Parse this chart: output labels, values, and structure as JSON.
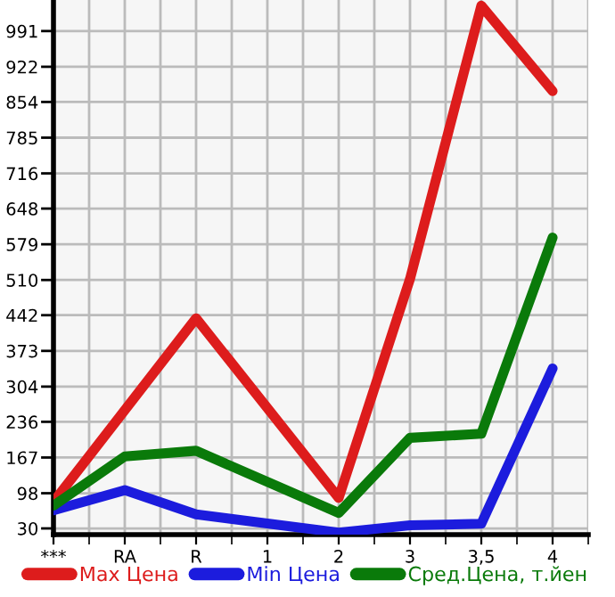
{
  "chart_data": {
    "type": "line",
    "categories": [
      "***",
      "RA",
      "R",
      "1",
      "2",
      "3",
      "3,5",
      "4"
    ],
    "series": [
      {
        "name": "Max Цена",
        "color": "#dd1c1c",
        "values": [
          81,
          null,
          436,
          null,
          89,
          512,
          1040,
          875
        ]
      },
      {
        "name": "Min Цена",
        "color": "#1c1cdd",
        "values": [
          65,
          104,
          57,
          null,
          22,
          36,
          39,
          339
        ]
      },
      {
        "name": "Сред.Цена, т.йен",
        "color": "#0a7a0a",
        "values": [
          74,
          169,
          180,
          null,
          60,
          205,
          213,
          592
        ]
      }
    ],
    "ylim": [
      18,
      1051
    ],
    "yticks": [
      30,
      98,
      167,
      236,
      304,
      373,
      442,
      510,
      579,
      648,
      716,
      785,
      854,
      922,
      991
    ],
    "grid": true,
    "legend": "bottom",
    "marker": "none",
    "line_style": "solid"
  }
}
